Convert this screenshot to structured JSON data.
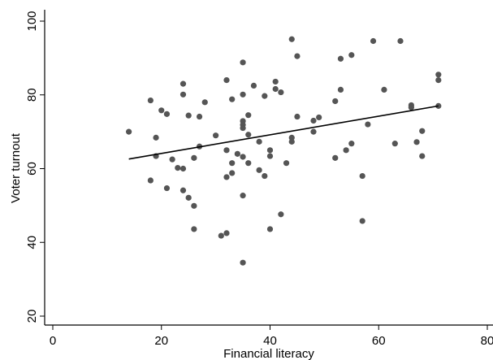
{
  "chart_data": {
    "type": "scatter",
    "title": "",
    "xlabel": "Financial literacy",
    "ylabel": "Voter turnout",
    "xlim": [
      0,
      80
    ],
    "ylim": [
      20,
      100
    ],
    "xticks": [
      "0",
      "20",
      "40",
      "60",
      "80"
    ],
    "yticks": [
      "20",
      "40",
      "60",
      "80",
      "100"
    ],
    "grid": false,
    "legend": "none",
    "point_color": "#555555",
    "line_color": "#000000",
    "series": [
      {
        "type": "scatter",
        "points": [
          [
            14,
            70.0
          ],
          [
            18,
            78.5
          ],
          [
            18,
            56.8
          ],
          [
            19,
            68.4
          ],
          [
            19,
            63.4
          ],
          [
            20,
            75.8
          ],
          [
            21,
            74.8
          ],
          [
            21,
            54.7
          ],
          [
            22,
            62.5
          ],
          [
            23,
            60.2
          ],
          [
            24,
            83.0
          ],
          [
            24,
            80.1
          ],
          [
            24,
            60.0
          ],
          [
            24,
            54.1
          ],
          [
            25,
            74.4
          ],
          [
            25,
            52.1
          ],
          [
            26,
            49.9
          ],
          [
            26,
            43.6
          ],
          [
            26,
            62.9
          ],
          [
            27,
            66.0
          ],
          [
            27,
            74.1
          ],
          [
            28,
            78.0
          ],
          [
            30,
            69.0
          ],
          [
            31,
            41.8
          ],
          [
            32,
            84.0
          ],
          [
            32,
            65.0
          ],
          [
            32,
            57.7
          ],
          [
            32,
            42.5
          ],
          [
            33,
            78.8
          ],
          [
            33,
            61.5
          ],
          [
            33,
            58.8
          ],
          [
            34,
            64.0
          ],
          [
            35,
            88.8
          ],
          [
            35,
            80.1
          ],
          [
            35,
            72.9
          ],
          [
            35,
            71.9
          ],
          [
            35,
            71.0
          ],
          [
            35,
            63.2
          ],
          [
            35,
            52.7
          ],
          [
            35,
            34.5
          ],
          [
            36,
            74.5
          ],
          [
            36,
            69.2
          ],
          [
            36,
            61.5
          ],
          [
            37,
            82.5
          ],
          [
            38,
            67.3
          ],
          [
            38,
            59.6
          ],
          [
            39,
            79.7
          ],
          [
            39,
            58.0
          ],
          [
            40,
            65.0
          ],
          [
            40,
            63.4
          ],
          [
            40,
            43.6
          ],
          [
            41,
            81.6
          ],
          [
            41,
            83.6
          ],
          [
            42,
            80.7
          ],
          [
            42,
            47.6
          ],
          [
            43,
            61.5
          ],
          [
            44,
            95.1
          ],
          [
            44,
            68.4
          ],
          [
            44,
            67.3
          ],
          [
            45,
            90.5
          ],
          [
            45,
            74.1
          ],
          [
            48,
            73.0
          ],
          [
            48,
            70.0
          ],
          [
            49,
            73.9
          ],
          [
            52,
            78.3
          ],
          [
            52,
            62.9
          ],
          [
            53,
            89.8
          ],
          [
            53,
            81.4
          ],
          [
            54,
            65.0
          ],
          [
            55,
            90.8
          ],
          [
            55,
            66.8
          ],
          [
            57,
            58.0
          ],
          [
            57,
            45.8
          ],
          [
            58,
            72.0
          ],
          [
            59,
            94.6
          ],
          [
            61,
            81.4
          ],
          [
            63,
            66.8
          ],
          [
            64,
            94.6
          ],
          [
            66,
            77.2
          ],
          [
            66,
            76.6
          ],
          [
            67,
            67.2
          ],
          [
            68,
            70.2
          ],
          [
            68,
            63.4
          ],
          [
            71,
            85.5
          ],
          [
            71,
            84.0
          ],
          [
            71,
            77.0
          ]
        ]
      },
      {
        "type": "line",
        "points": [
          [
            14,
            62.6
          ],
          [
            71,
            77.0
          ]
        ]
      }
    ]
  }
}
